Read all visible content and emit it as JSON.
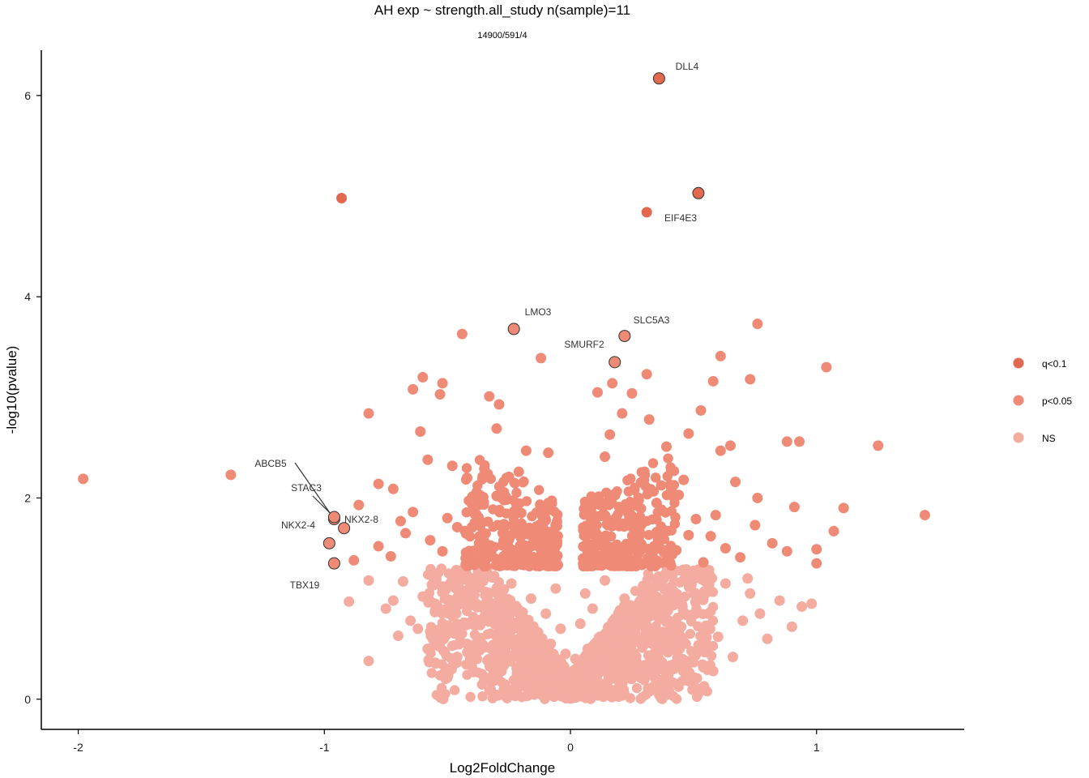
{
  "chart_data": {
    "type": "scatter",
    "title": "AH exp ~ strength.all_study n(sample)=11",
    "subtitle": "14900/591/4",
    "xlabel": "Log2FoldChange",
    "ylabel": "-log10(pvalue)",
    "xlim": [
      -2.15,
      1.6
    ],
    "ylim": [
      -0.3,
      6.45
    ],
    "x_ticks": [
      -2,
      -1,
      0,
      1
    ],
    "y_ticks": [
      0,
      2,
      4,
      6
    ],
    "grid": false,
    "legend_position": "right",
    "colors": {
      "q<0.1": "#e2694f",
      "p<0.05": "#ee8a76",
      "NS": "#f4aba0",
      "outline": "#333333"
    },
    "series": [
      {
        "name": "q<0.1",
        "points": [
          [
            0.36,
            6.17
          ],
          [
            0.52,
            5.03
          ],
          [
            -0.93,
            4.98
          ],
          [
            0.31,
            4.84
          ]
        ]
      },
      {
        "name": "p<0.05",
        "points": [
          [
            -1.98,
            2.19
          ],
          [
            -1.38,
            2.23
          ],
          [
            -0.82,
            2.84
          ],
          [
            -0.44,
            3.63
          ],
          [
            -0.12,
            3.39
          ],
          [
            -0.6,
            3.2
          ],
          [
            -0.52,
            3.14
          ],
          [
            -0.64,
            3.08
          ],
          [
            -0.53,
            3.03
          ],
          [
            -0.33,
            3.01
          ],
          [
            -0.29,
            2.93
          ],
          [
            -0.61,
            2.66
          ],
          [
            -0.3,
            2.69
          ],
          [
            -0.78,
            2.14
          ],
          [
            -0.86,
            1.93
          ],
          [
            -0.67,
            1.65
          ],
          [
            -0.88,
            1.38
          ],
          [
            0.76,
            3.73
          ],
          [
            0.61,
            3.41
          ],
          [
            0.58,
            3.16
          ],
          [
            0.73,
            3.18
          ],
          [
            1.04,
            3.3
          ],
          [
            1.25,
            2.52
          ],
          [
            0.53,
            2.87
          ],
          [
            0.48,
            2.64
          ],
          [
            0.88,
            2.56
          ],
          [
            0.93,
            2.56
          ],
          [
            1.44,
            1.83
          ],
          [
            1.11,
            1.9
          ],
          [
            1.07,
            1.67
          ],
          [
            0.65,
            2.52
          ],
          [
            0.61,
            2.47
          ],
          [
            0.67,
            2.16
          ],
          [
            0.76,
            2.0
          ],
          [
            0.91,
            1.91
          ],
          [
            1.0,
            1.49
          ],
          [
            1.0,
            1.35
          ],
          [
            0.31,
            3.23
          ],
          [
            0.17,
            3.14
          ],
          [
            0.11,
            3.05
          ],
          [
            0.25,
            3.04
          ],
          [
            0.21,
            2.84
          ],
          [
            0.32,
            2.78
          ],
          [
            0.16,
            2.63
          ],
          [
            0.39,
            2.51
          ],
          [
            -0.18,
            2.47
          ],
          [
            -0.09,
            2.45
          ],
          [
            -0.48,
            2.32
          ],
          [
            -0.21,
            2.26
          ],
          [
            -0.35,
            2.29
          ],
          [
            -0.58,
            2.38
          ],
          [
            -0.42,
            2.2
          ],
          [
            -0.25,
            2.21
          ],
          [
            -0.72,
            2.09
          ],
          [
            0.14,
            2.41
          ],
          [
            0.3,
            2.23
          ],
          [
            0.44,
            2.03
          ],
          [
            0.51,
            1.79
          ],
          [
            0.57,
            1.62
          ],
          [
            0.63,
            1.5
          ],
          [
            0.69,
            1.41
          ],
          [
            0.75,
            1.73
          ],
          [
            0.82,
            1.55
          ],
          [
            0.88,
            1.47
          ],
          [
            -0.78,
            1.52
          ],
          [
            -0.73,
            1.42
          ],
          [
            -0.69,
            1.77
          ],
          [
            -0.64,
            1.86
          ],
          [
            -0.57,
            1.58
          ],
          [
            -0.52,
            1.47
          ],
          [
            -0.46,
            1.71
          ],
          [
            -0.41,
            1.38
          ],
          [
            -0.36,
            1.62
          ],
          [
            -0.32,
            1.5
          ],
          [
            -0.27,
            1.74
          ],
          [
            -0.22,
            1.4
          ],
          [
            -0.17,
            1.66
          ],
          [
            -0.12,
            1.52
          ],
          [
            -0.07,
            1.45
          ],
          [
            0.07,
            1.46
          ],
          [
            0.12,
            1.61
          ],
          [
            0.17,
            1.43
          ],
          [
            0.22,
            1.72
          ],
          [
            0.27,
            1.55
          ],
          [
            0.33,
            1.39
          ],
          [
            0.38,
            1.68
          ],
          [
            0.43,
            1.48
          ],
          [
            0.48,
            1.63
          ],
          [
            0.54,
            1.36
          ],
          [
            0.59,
            1.83
          ],
          [
            -0.4,
            1.94
          ],
          [
            -0.2,
            1.85
          ],
          [
            0.2,
            1.9
          ],
          [
            0.35,
            1.95
          ],
          [
            -0.5,
            1.8
          ],
          [
            0.1,
            1.82
          ],
          [
            -0.1,
            1.78
          ],
          [
            0.26,
            2.08
          ],
          [
            -0.3,
            2.02
          ],
          [
            0.46,
            2.18
          ]
        ]
      },
      {
        "name": "NS",
        "points": [
          [
            -0.9,
            0.97
          ],
          [
            -0.82,
            1.18
          ],
          [
            -0.82,
            0.38
          ],
          [
            -0.75,
            0.9
          ],
          [
            -0.7,
            0.63
          ],
          [
            -0.68,
            1.17
          ],
          [
            -0.65,
            0.78
          ],
          [
            -0.6,
            1.02
          ],
          [
            -0.58,
            0.5
          ],
          [
            -0.55,
            0.88
          ],
          [
            -0.52,
            1.12
          ],
          [
            -0.5,
            0.3
          ],
          [
            -0.47,
            0.72
          ],
          [
            -0.44,
            0.95
          ],
          [
            -0.42,
            0.55
          ],
          [
            -0.4,
            1.2
          ],
          [
            -0.38,
            0.4
          ],
          [
            -0.35,
            0.82
          ],
          [
            -0.33,
            1.05
          ],
          [
            -0.3,
            0.62
          ],
          [
            -0.28,
            0.28
          ],
          [
            -0.26,
            0.9
          ],
          [
            -0.24,
            1.15
          ],
          [
            -0.22,
            0.48
          ],
          [
            -0.2,
            0.75
          ],
          [
            -0.18,
            0.2
          ],
          [
            -0.16,
            1.0
          ],
          [
            -0.14,
            0.6
          ],
          [
            -0.12,
            0.35
          ],
          [
            -0.1,
            0.85
          ],
          [
            -0.09,
            0.15
          ],
          [
            -0.08,
            0.55
          ],
          [
            -0.06,
            1.1
          ],
          [
            -0.05,
            0.3
          ],
          [
            -0.04,
            0.7
          ],
          [
            -0.03,
            0.1
          ],
          [
            -0.02,
            0.45
          ],
          [
            -0.01,
            0.05
          ],
          [
            0.0,
            0.02
          ],
          [
            0.01,
            0.08
          ],
          [
            0.02,
            0.4
          ],
          [
            0.03,
            0.15
          ],
          [
            0.04,
            0.75
          ],
          [
            0.05,
            0.28
          ],
          [
            0.06,
            1.05
          ],
          [
            0.07,
            0.5
          ],
          [
            0.08,
            0.2
          ],
          [
            0.09,
            0.9
          ],
          [
            0.1,
            0.35
          ],
          [
            0.12,
            0.62
          ],
          [
            0.14,
            1.18
          ],
          [
            0.16,
            0.45
          ],
          [
            0.18,
            0.8
          ],
          [
            0.2,
            0.25
          ],
          [
            0.22,
            1.0
          ],
          [
            0.24,
            0.55
          ],
          [
            0.26,
            0.35
          ],
          [
            0.28,
            0.88
          ],
          [
            0.3,
            1.12
          ],
          [
            0.33,
            0.6
          ],
          [
            0.36,
            0.4
          ],
          [
            0.39,
            0.95
          ],
          [
            0.42,
            0.3
          ],
          [
            0.45,
            0.72
          ],
          [
            0.48,
            0.18
          ],
          [
            0.5,
            1.05
          ],
          [
            0.53,
            0.5
          ],
          [
            0.56,
            0.85
          ],
          [
            0.6,
            0.62
          ],
          [
            0.63,
            1.15
          ],
          [
            0.66,
            0.42
          ],
          [
            0.7,
            0.78
          ],
          [
            0.73,
            1.05
          ],
          [
            0.77,
            0.85
          ],
          [
            0.8,
            0.6
          ],
          [
            0.85,
            0.98
          ],
          [
            0.9,
            0.72
          ],
          [
            0.98,
            0.95
          ],
          [
            0.94,
            0.92
          ],
          [
            0.72,
            1.2
          ],
          [
            -0.72,
            0.98
          ],
          [
            -0.62,
            0.7
          ],
          [
            -0.46,
            0.42
          ],
          [
            -0.36,
            0.25
          ],
          [
            -0.15,
            0.1
          ],
          [
            0.15,
            0.12
          ],
          [
            0.34,
            0.22
          ],
          [
            0.47,
            0.38
          ],
          [
            0.58,
            0.28
          ],
          [
            -0.56,
            0.6
          ]
        ]
      }
    ],
    "annotations": [
      {
        "label": "DLL4",
        "x": 0.36,
        "y": 6.17
      },
      {
        "label": "EIF4E3",
        "x": 0.52,
        "y": 5.03
      },
      {
        "label": "LMO3",
        "x": -0.23,
        "y": 3.68
      },
      {
        "label": "SLC5A3",
        "x": 0.22,
        "y": 3.61
      },
      {
        "label": "SMURF2",
        "x": 0.18,
        "y": 3.35
      },
      {
        "label": "ABCB5",
        "x": -0.96,
        "y": 1.79
      },
      {
        "label": "STAC3",
        "x": -0.96,
        "y": 1.81
      },
      {
        "label": "NKX2-8",
        "x": -0.92,
        "y": 1.7
      },
      {
        "label": "NKX2-4",
        "x": -0.98,
        "y": 1.55
      },
      {
        "label": "TBX19",
        "x": -0.96,
        "y": 1.35
      }
    ]
  }
}
